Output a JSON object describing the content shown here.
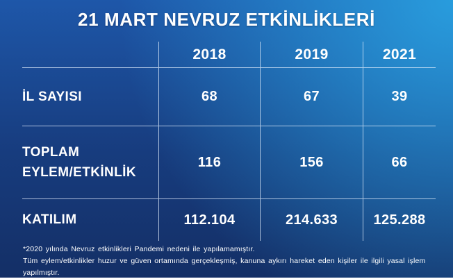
{
  "title": "21 MART NEVRUZ ETKİNLİKLERİ",
  "table": {
    "columns": [
      "2018",
      "2019",
      "2021"
    ],
    "rows": [
      {
        "label": "İL SAYISI",
        "values": [
          "68",
          "67",
          "39"
        ]
      },
      {
        "label": "TOPLAM EYLEM/ETKİNLİK",
        "values": [
          "116",
          "156",
          "66"
        ]
      },
      {
        "label": "KATILIM",
        "values": [
          "112.104",
          "214.633",
          "125.288"
        ]
      }
    ]
  },
  "footnotes": [
    "*2020 yılında Nevruz etkinlikleri Pandemi nedeni ile yapılamamıştır.",
    "Tüm eylem/etkinlikler huzur ve güven ortamında gerçekleşmiş, kanuna aykırı hareket eden kişiler ile ilgili yasal işlem yapılmıştır."
  ],
  "colors": {
    "background_top_right": "#29a0e0",
    "background_top_left": "#1e57a9",
    "background_bottom": "#142f66",
    "grid_line": "rgba(225,238,252,0.75)",
    "text": "#ffffff"
  },
  "chart_data": {
    "type": "table",
    "title": "21 MART NEVRUZ ETKİNLİKLERİ",
    "categories": [
      "2018",
      "2019",
      "2021"
    ],
    "series": [
      {
        "name": "İL SAYISI",
        "values": [
          68,
          67,
          39
        ]
      },
      {
        "name": "TOPLAM EYLEM/ETKİNLİK",
        "values": [
          116,
          156,
          66
        ]
      },
      {
        "name": "KATILIM",
        "values": [
          112104,
          214633,
          125288
        ]
      }
    ],
    "annotations": [
      "*2020 yılında Nevruz etkinlikleri Pandemi nedeni ile yapılamamıştır.",
      "Tüm eylem/etkinlikler huzur ve güven ortamında gerçekleşmiş, kanuna aykırı hareket eden kişiler ile ilgili yasal işlem yapılmıştır."
    ]
  }
}
